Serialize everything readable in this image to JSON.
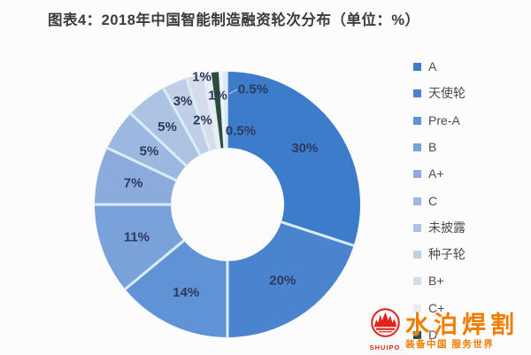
{
  "title": "图表4：2018年中国智能制造融资轮次分布（单位：%）",
  "chart_data": {
    "type": "pie",
    "subtype": "donut",
    "title": "图表4：2018年中国智能制造融资轮次分布（单位：%）",
    "unit": "%",
    "direction": "clockwise",
    "start_angle": "top",
    "legend_position": "right",
    "series": [
      {
        "name": "A",
        "value": 30,
        "label": "30%",
        "color": "#3d7ccb"
      },
      {
        "name": "天使轮",
        "value": 20,
        "label": "20%",
        "color": "#4a83ce"
      },
      {
        "name": "Pre-A",
        "value": 14,
        "label": "14%",
        "color": "#6093d5"
      },
      {
        "name": "B",
        "value": 11,
        "label": "11%",
        "color": "#7aa2da"
      },
      {
        "name": "A+",
        "value": 7,
        "label": "7%",
        "color": "#8cabdd"
      },
      {
        "name": "C",
        "value": 5,
        "label": "5%",
        "color": "#9cb8e1"
      },
      {
        "name": "未披露",
        "value": 5,
        "label": "5%",
        "color": "#adc3e3"
      },
      {
        "name": "种子轮",
        "value": 3,
        "label": "3%",
        "color": "#c0cee7"
      },
      {
        "name": "B+",
        "value": 2,
        "label": "2%",
        "color": "#d5dcea"
      },
      {
        "name": "C+",
        "value": 1,
        "label": "1%",
        "color": "#e9edf3"
      },
      {
        "name": "D",
        "value": 1,
        "label": "1%",
        "color": "#2f4a3d"
      },
      {
        "name": "",
        "value": 0.5,
        "label": "0.5%",
        "color": "#f3f5f7"
      },
      {
        "name": "",
        "value": 0.5,
        "label": "0.5%",
        "color": "#e2e7ee"
      }
    ],
    "legend_items": [
      "A",
      "天使轮",
      "Pre-A",
      "B",
      "A+",
      "C",
      "未披露",
      "种子轮",
      "B+",
      "C+",
      "D"
    ]
  },
  "watermark": {
    "brand": "水泊焊割",
    "logo_text": "SHUIPO",
    "tagline": "装备中国 服务世界",
    "brand_color": "#f07c00",
    "logo_color": "#e2251c"
  },
  "colors": {
    "background": "#fcfcfc",
    "title_text": "#3c3c3c",
    "slice_label": "#2c3a5e",
    "legend_text": "#4c4c4c",
    "divider": "#d9edf6"
  }
}
